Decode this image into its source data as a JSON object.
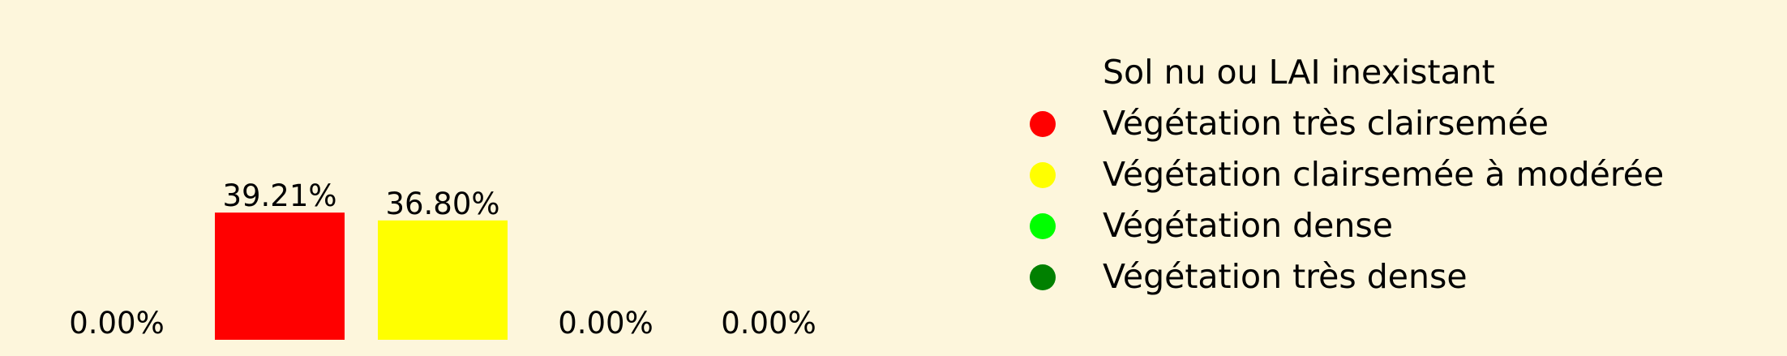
{
  "chart_data": {
    "type": "bar",
    "categories": [
      "Sol nu ou LAI inexistant",
      "Végétation très clairsemée",
      "Végétation clairsemée à modérée",
      "Végétation dense",
      "Végétation très dense"
    ],
    "values": [
      0.0,
      39.21,
      36.8,
      0.0,
      0.0
    ],
    "value_labels": [
      "0.00%",
      "39.21%",
      "36.80%",
      "0.00%",
      "0.00%"
    ],
    "colors": [
      "#fdf6dc",
      "#ff0000",
      "#ffff00",
      "#00ff00",
      "#008000"
    ],
    "ylim": [
      0,
      100
    ],
    "grid": false,
    "axes_visible": false,
    "legend": {
      "placement": "right",
      "entries": [
        {
          "label": "Sol nu ou LAI inexistant",
          "color": "#fdf6dc"
        },
        {
          "label": "Végétation très clairsemée",
          "color": "#ff0000"
        },
        {
          "label": "Végétation clairsemée à modérée",
          "color": "#ffff00"
        },
        {
          "label": "Végétation dense",
          "color": "#00ff00"
        },
        {
          "label": "Végétation très dense",
          "color": "#008000"
        }
      ]
    }
  }
}
